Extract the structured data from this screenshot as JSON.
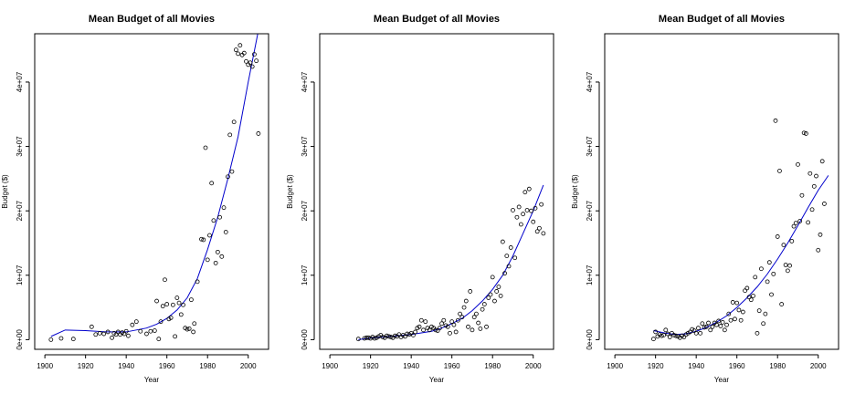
{
  "figure": {
    "colors": {
      "points": "#000000",
      "curve": "#0000cc",
      "frame": "#000000",
      "background": "#ffffff"
    }
  },
  "chart_data": [
    {
      "type": "scatter",
      "title": "Mean Budget of all Movies",
      "xlabel": "Year",
      "ylabel": "Budget ($)",
      "xlim": [
        1895,
        2010
      ],
      "ylim": [
        -1500000,
        47500000
      ],
      "x_ticks": [
        1900,
        1920,
        1940,
        1960,
        1980,
        2000
      ],
      "x_tick_labels": [
        "1900",
        "1920",
        "1940",
        "1960",
        "1980",
        "2000"
      ],
      "y_ticks": [
        0,
        10000000,
        20000000,
        30000000,
        40000000
      ],
      "y_tick_labels": [
        "0e+00",
        "1e+07",
        "2e+07",
        "3e+07",
        "4e+07"
      ],
      "points": [
        [
          1903,
          0
        ],
        [
          1908,
          200000
        ],
        [
          1914,
          100000
        ],
        [
          1923,
          2000000
        ],
        [
          1925,
          800000
        ],
        [
          1927,
          1000000
        ],
        [
          1929,
          900000
        ],
        [
          1931,
          1200000
        ],
        [
          1933,
          300000
        ],
        [
          1934,
          1000000
        ],
        [
          1935,
          800000
        ],
        [
          1936,
          1200000
        ],
        [
          1937,
          800000
        ],
        [
          1938,
          1100000
        ],
        [
          1939,
          900000
        ],
        [
          1940,
          1300000
        ],
        [
          1941,
          600000
        ],
        [
          1943,
          2300000
        ],
        [
          1945,
          2800000
        ],
        [
          1947,
          1300000
        ],
        [
          1950,
          900000
        ],
        [
          1952,
          1300000
        ],
        [
          1954,
          1400000
        ],
        [
          1955,
          6000000
        ],
        [
          1956,
          100000
        ],
        [
          1957,
          2800000
        ],
        [
          1958,
          5200000
        ],
        [
          1959,
          9300000
        ],
        [
          1960,
          5500000
        ],
        [
          1961,
          3200000
        ],
        [
          1962,
          3400000
        ],
        [
          1963,
          5400000
        ],
        [
          1964,
          500000
        ],
        [
          1965,
          6500000
        ],
        [
          1966,
          5700000
        ],
        [
          1967,
          3900000
        ],
        [
          1968,
          5400000
        ],
        [
          1969,
          1800000
        ],
        [
          1970,
          1600000
        ],
        [
          1971,
          1700000
        ],
        [
          1972,
          6200000
        ],
        [
          1973,
          1200000
        ],
        [
          1973.5,
          2500000
        ],
        [
          1975,
          9000000
        ],
        [
          1977,
          15600000
        ],
        [
          1978,
          15500000
        ],
        [
          1979,
          29800000
        ],
        [
          1980,
          12400000
        ],
        [
          1981,
          16200000
        ],
        [
          1982,
          24300000
        ],
        [
          1983,
          18500000
        ],
        [
          1984,
          11900000
        ],
        [
          1985,
          13600000
        ],
        [
          1986,
          19000000
        ],
        [
          1987,
          12900000
        ],
        [
          1988,
          20500000
        ],
        [
          1989,
          16700000
        ],
        [
          1990,
          25300000
        ],
        [
          1991,
          31800000
        ],
        [
          1992,
          26100000
        ],
        [
          1993,
          33800000
        ],
        [
          1994,
          45000000
        ],
        [
          1995,
          44400000
        ],
        [
          1996,
          45700000
        ],
        [
          1997,
          44200000
        ],
        [
          1998,
          44500000
        ],
        [
          1999,
          43200000
        ],
        [
          2000,
          42700000
        ],
        [
          2001,
          43000000
        ],
        [
          2002,
          42400000
        ],
        [
          2003,
          44300000
        ],
        [
          2004,
          43300000
        ],
        [
          2005,
          32000000
        ]
      ],
      "curve": [
        [
          1903,
          500000
        ],
        [
          1910,
          1500000
        ],
        [
          1920,
          1400000
        ],
        [
          1930,
          1200000
        ],
        [
          1940,
          1200000
        ],
        [
          1950,
          1800000
        ],
        [
          1955,
          2400000
        ],
        [
          1960,
          3300000
        ],
        [
          1965,
          4600000
        ],
        [
          1970,
          6500000
        ],
        [
          1975,
          9500000
        ],
        [
          1980,
          14000000
        ],
        [
          1985,
          19000000
        ],
        [
          1990,
          25000000
        ],
        [
          1995,
          31500000
        ],
        [
          2000,
          40000000
        ],
        [
          2005,
          48000000
        ]
      ]
    },
    {
      "type": "scatter",
      "title": "Mean Budget of all Movies",
      "xlabel": "Year",
      "ylabel": "Budget ($)",
      "xlim": [
        1895,
        2010
      ],
      "ylim": [
        -1500000,
        47500000
      ],
      "x_ticks": [
        1900,
        1920,
        1940,
        1960,
        1980,
        2000
      ],
      "x_tick_labels": [
        "1900",
        "1920",
        "1940",
        "1960",
        "1980",
        "2000"
      ],
      "y_ticks": [
        0,
        10000000,
        20000000,
        30000000,
        40000000
      ],
      "y_tick_labels": [
        "0e+00",
        "1e+07",
        "2e+07",
        "3e+07",
        "4e+07"
      ],
      "points": [
        [
          1914,
          100000
        ],
        [
          1917,
          200000
        ],
        [
          1918,
          300000
        ],
        [
          1919,
          300000
        ],
        [
          1920,
          200000
        ],
        [
          1921,
          400000
        ],
        [
          1922,
          200000
        ],
        [
          1923,
          300000
        ],
        [
          1924,
          500000
        ],
        [
          1925,
          700000
        ],
        [
          1926,
          400000
        ],
        [
          1927,
          300000
        ],
        [
          1928,
          600000
        ],
        [
          1929,
          500000
        ],
        [
          1930,
          400000
        ],
        [
          1931,
          300000
        ],
        [
          1932,
          600000
        ],
        [
          1933,
          500000
        ],
        [
          1934,
          800000
        ],
        [
          1935,
          400000
        ],
        [
          1936,
          700000
        ],
        [
          1937,
          500000
        ],
        [
          1938,
          900000
        ],
        [
          1939,
          800000
        ],
        [
          1940,
          1000000
        ],
        [
          1941,
          700000
        ],
        [
          1942,
          1200000
        ],
        [
          1943,
          1800000
        ],
        [
          1944,
          2000000
        ],
        [
          1945,
          3000000
        ],
        [
          1946,
          1500000
        ],
        [
          1947,
          2800000
        ],
        [
          1948,
          1800000
        ],
        [
          1949,
          1500000
        ],
        [
          1950,
          2000000
        ],
        [
          1951,
          1800000
        ],
        [
          1952,
          1500000
        ],
        [
          1953,
          1400000
        ],
        [
          1954,
          1800000
        ],
        [
          1955,
          2500000
        ],
        [
          1956,
          3000000
        ],
        [
          1957,
          2200000
        ],
        [
          1958,
          2000000
        ],
        [
          1959,
          1000000
        ],
        [
          1960,
          2800000
        ],
        [
          1961,
          2300000
        ],
        [
          1962,
          1200000
        ],
        [
          1963,
          3000000
        ],
        [
          1964,
          4000000
        ],
        [
          1965,
          3500000
        ],
        [
          1966,
          5000000
        ],
        [
          1967,
          6000000
        ],
        [
          1968,
          2000000
        ],
        [
          1969,
          7500000
        ],
        [
          1970,
          1500000
        ],
        [
          1971,
          3500000
        ],
        [
          1972,
          4000000
        ],
        [
          1973,
          2600000
        ],
        [
          1974,
          1700000
        ],
        [
          1975,
          4700000
        ],
        [
          1976,
          5500000
        ],
        [
          1977,
          2000000
        ],
        [
          1978,
          6500000
        ],
        [
          1979,
          7000000
        ],
        [
          1980,
          9700000
        ],
        [
          1981,
          6000000
        ],
        [
          1982,
          7500000
        ],
        [
          1983,
          8200000
        ],
        [
          1984,
          6800000
        ],
        [
          1985,
          15200000
        ],
        [
          1986,
          10300000
        ],
        [
          1987,
          13000000
        ],
        [
          1988,
          11400000
        ],
        [
          1989,
          14300000
        ],
        [
          1990,
          20100000
        ],
        [
          1991,
          12700000
        ],
        [
          1992,
          19000000
        ],
        [
          1993,
          20600000
        ],
        [
          1994,
          17900000
        ],
        [
          1995,
          19500000
        ],
        [
          1996,
          22900000
        ],
        [
          1997,
          20100000
        ],
        [
          1998,
          23400000
        ],
        [
          1999,
          20000000
        ],
        [
          2000,
          18300000
        ],
        [
          2001,
          20400000
        ],
        [
          2002,
          16800000
        ],
        [
          2003,
          17300000
        ],
        [
          2004,
          21000000
        ],
        [
          2005,
          16500000
        ]
      ],
      "curve": [
        [
          1914,
          0
        ],
        [
          1920,
          250000
        ],
        [
          1930,
          500000
        ],
        [
          1940,
          800000
        ],
        [
          1950,
          1300000
        ],
        [
          1955,
          1800000
        ],
        [
          1960,
          2500000
        ],
        [
          1965,
          3300000
        ],
        [
          1970,
          4500000
        ],
        [
          1975,
          6000000
        ],
        [
          1980,
          7800000
        ],
        [
          1985,
          10000000
        ],
        [
          1990,
          13000000
        ],
        [
          1995,
          16500000
        ],
        [
          2000,
          20000000
        ],
        [
          2005,
          24000000
        ]
      ]
    },
    {
      "type": "scatter",
      "title": "Mean Budget of all Movies",
      "xlabel": "Year",
      "ylabel": "Budget ($)",
      "xlim": [
        1895,
        2010
      ],
      "ylim": [
        -1500000,
        47500000
      ],
      "x_ticks": [
        1900,
        1920,
        1940,
        1960,
        1980,
        2000
      ],
      "x_tick_labels": [
        "1900",
        "1920",
        "1940",
        "1960",
        "1980",
        "2000"
      ],
      "y_ticks": [
        0,
        10000000,
        20000000,
        30000000,
        40000000
      ],
      "y_tick_labels": [
        "0e+00",
        "1e+07",
        "2e+07",
        "3e+07",
        "4e+07"
      ],
      "points": [
        [
          1919,
          100000
        ],
        [
          1920,
          1200000
        ],
        [
          1921,
          500000
        ],
        [
          1922,
          800000
        ],
        [
          1923,
          600000
        ],
        [
          1924,
          700000
        ],
        [
          1925,
          1500000
        ],
        [
          1926,
          900000
        ],
        [
          1927,
          400000
        ],
        [
          1928,
          1000000
        ],
        [
          1929,
          700000
        ],
        [
          1930,
          600000
        ],
        [
          1931,
          500000
        ],
        [
          1932,
          300000
        ],
        [
          1933,
          600000
        ],
        [
          1934,
          400000
        ],
        [
          1935,
          800000
        ],
        [
          1936,
          1000000
        ],
        [
          1937,
          1200000
        ],
        [
          1938,
          1600000
        ],
        [
          1939,
          1400000
        ],
        [
          1940,
          1000000
        ],
        [
          1941,
          1800000
        ],
        [
          1942,
          1000000
        ],
        [
          1943,
          2500000
        ],
        [
          1944,
          1900000
        ],
        [
          1945,
          2000000
        ],
        [
          1946,
          2600000
        ],
        [
          1947,
          1500000
        ],
        [
          1948,
          2000000
        ],
        [
          1949,
          2600000
        ],
        [
          1950,
          2300000
        ],
        [
          1951,
          2900000
        ],
        [
          1952,
          2100000
        ],
        [
          1953,
          2700000
        ],
        [
          1954,
          1500000
        ],
        [
          1955,
          2300000
        ],
        [
          1956,
          4000000
        ],
        [
          1957,
          3000000
        ],
        [
          1958,
          5800000
        ],
        [
          1959,
          3200000
        ],
        [
          1960,
          5700000
        ],
        [
          1961,
          4600000
        ],
        [
          1962,
          3000000
        ],
        [
          1963,
          4300000
        ],
        [
          1964,
          7600000
        ],
        [
          1965,
          8000000
        ],
        [
          1966,
          6600000
        ],
        [
          1967,
          6200000
        ],
        [
          1968,
          6800000
        ],
        [
          1969,
          9700000
        ],
        [
          1970,
          1000000
        ],
        [
          1971,
          4500000
        ],
        [
          1972,
          11000000
        ],
        [
          1973,
          2500000
        ],
        [
          1974,
          4000000
        ],
        [
          1975,
          9000000
        ],
        [
          1976,
          12000000
        ],
        [
          1977,
          7000000
        ],
        [
          1978,
          10200000
        ],
        [
          1979,
          34000000
        ],
        [
          1980,
          16000000
        ],
        [
          1981,
          26200000
        ],
        [
          1982,
          5500000
        ],
        [
          1983,
          14700000
        ],
        [
          1984,
          11600000
        ],
        [
          1985,
          10700000
        ],
        [
          1986,
          11500000
        ],
        [
          1987,
          15300000
        ],
        [
          1988,
          17600000
        ],
        [
          1989,
          18100000
        ],
        [
          1990,
          27200000
        ],
        [
          1991,
          18400000
        ],
        [
          1992,
          22400000
        ],
        [
          1993,
          32100000
        ],
        [
          1994,
          32000000
        ],
        [
          1995,
          18200000
        ],
        [
          1996,
          25800000
        ],
        [
          1997,
          20200000
        ],
        [
          1998,
          23800000
        ],
        [
          1999,
          25400000
        ],
        [
          2000,
          13900000
        ],
        [
          2001,
          16300000
        ],
        [
          2002,
          27700000
        ],
        [
          2003,
          21100000
        ]
      ],
      "curve": [
        [
          1919,
          1400000
        ],
        [
          1925,
          1000000
        ],
        [
          1930,
          800000
        ],
        [
          1935,
          900000
        ],
        [
          1940,
          1300000
        ],
        [
          1945,
          1900000
        ],
        [
          1950,
          2700000
        ],
        [
          1955,
          3700000
        ],
        [
          1960,
          5000000
        ],
        [
          1965,
          6500000
        ],
        [
          1970,
          8200000
        ],
        [
          1975,
          10200000
        ],
        [
          1980,
          12500000
        ],
        [
          1985,
          15000000
        ],
        [
          1990,
          17700000
        ],
        [
          1995,
          20500000
        ],
        [
          2000,
          23200000
        ],
        [
          2005,
          25500000
        ]
      ]
    }
  ]
}
